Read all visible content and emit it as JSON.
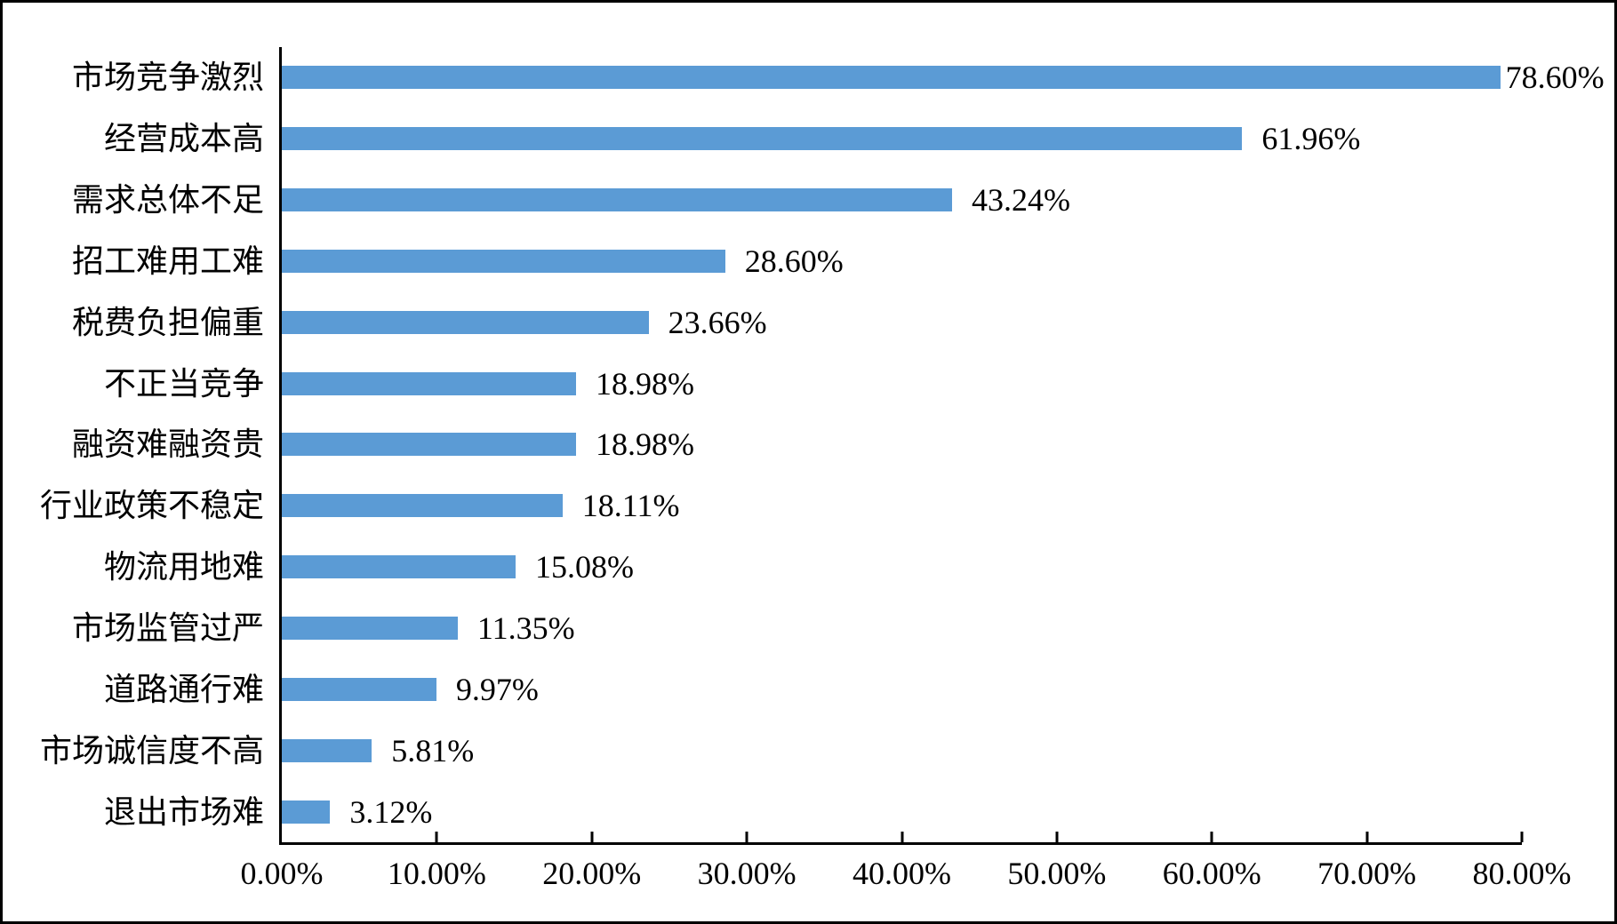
{
  "figure": {
    "background_color": "#ffffff",
    "border_color": "#000000",
    "text_color": "#000000",
    "axis_color": "#000000"
  },
  "chart_data": {
    "type": "bar",
    "orientation": "horizontal",
    "title": "",
    "xlabel": "",
    "ylabel": "",
    "grid": "off",
    "legend": "none",
    "bar_color": "#5B9BD5",
    "xlim": [
      0,
      80
    ],
    "categories": [
      "市场竞争激烈",
      "经营成本高",
      "需求总体不足",
      "招工难用工难",
      "税费负担偏重",
      "不正当竞争",
      "融资难融资贵",
      "行业政策不稳定",
      "物流用地难",
      "市场监管过严",
      "道路通行难",
      "市场诚信度不高",
      "退出市场难"
    ],
    "values": [
      78.6,
      61.96,
      43.24,
      28.6,
      23.66,
      18.98,
      18.98,
      18.11,
      15.08,
      11.35,
      9.97,
      5.81,
      3.12
    ],
    "value_labels": [
      "78.60%",
      "61.96%",
      "43.24%",
      "28.60%",
      "23.66%",
      "18.98%",
      "18.98%",
      "18.11%",
      "15.08%",
      "11.35%",
      "9.97%",
      "5.81%",
      "3.12%"
    ],
    "x_tick_values": [
      0,
      10,
      20,
      30,
      40,
      50,
      60,
      70,
      80
    ],
    "x_tick_labels": [
      "0.00%",
      "10.00%",
      "20.00%",
      "30.00%",
      "40.00%",
      "50.00%",
      "60.00%",
      "70.00%",
      "80.00%"
    ]
  }
}
